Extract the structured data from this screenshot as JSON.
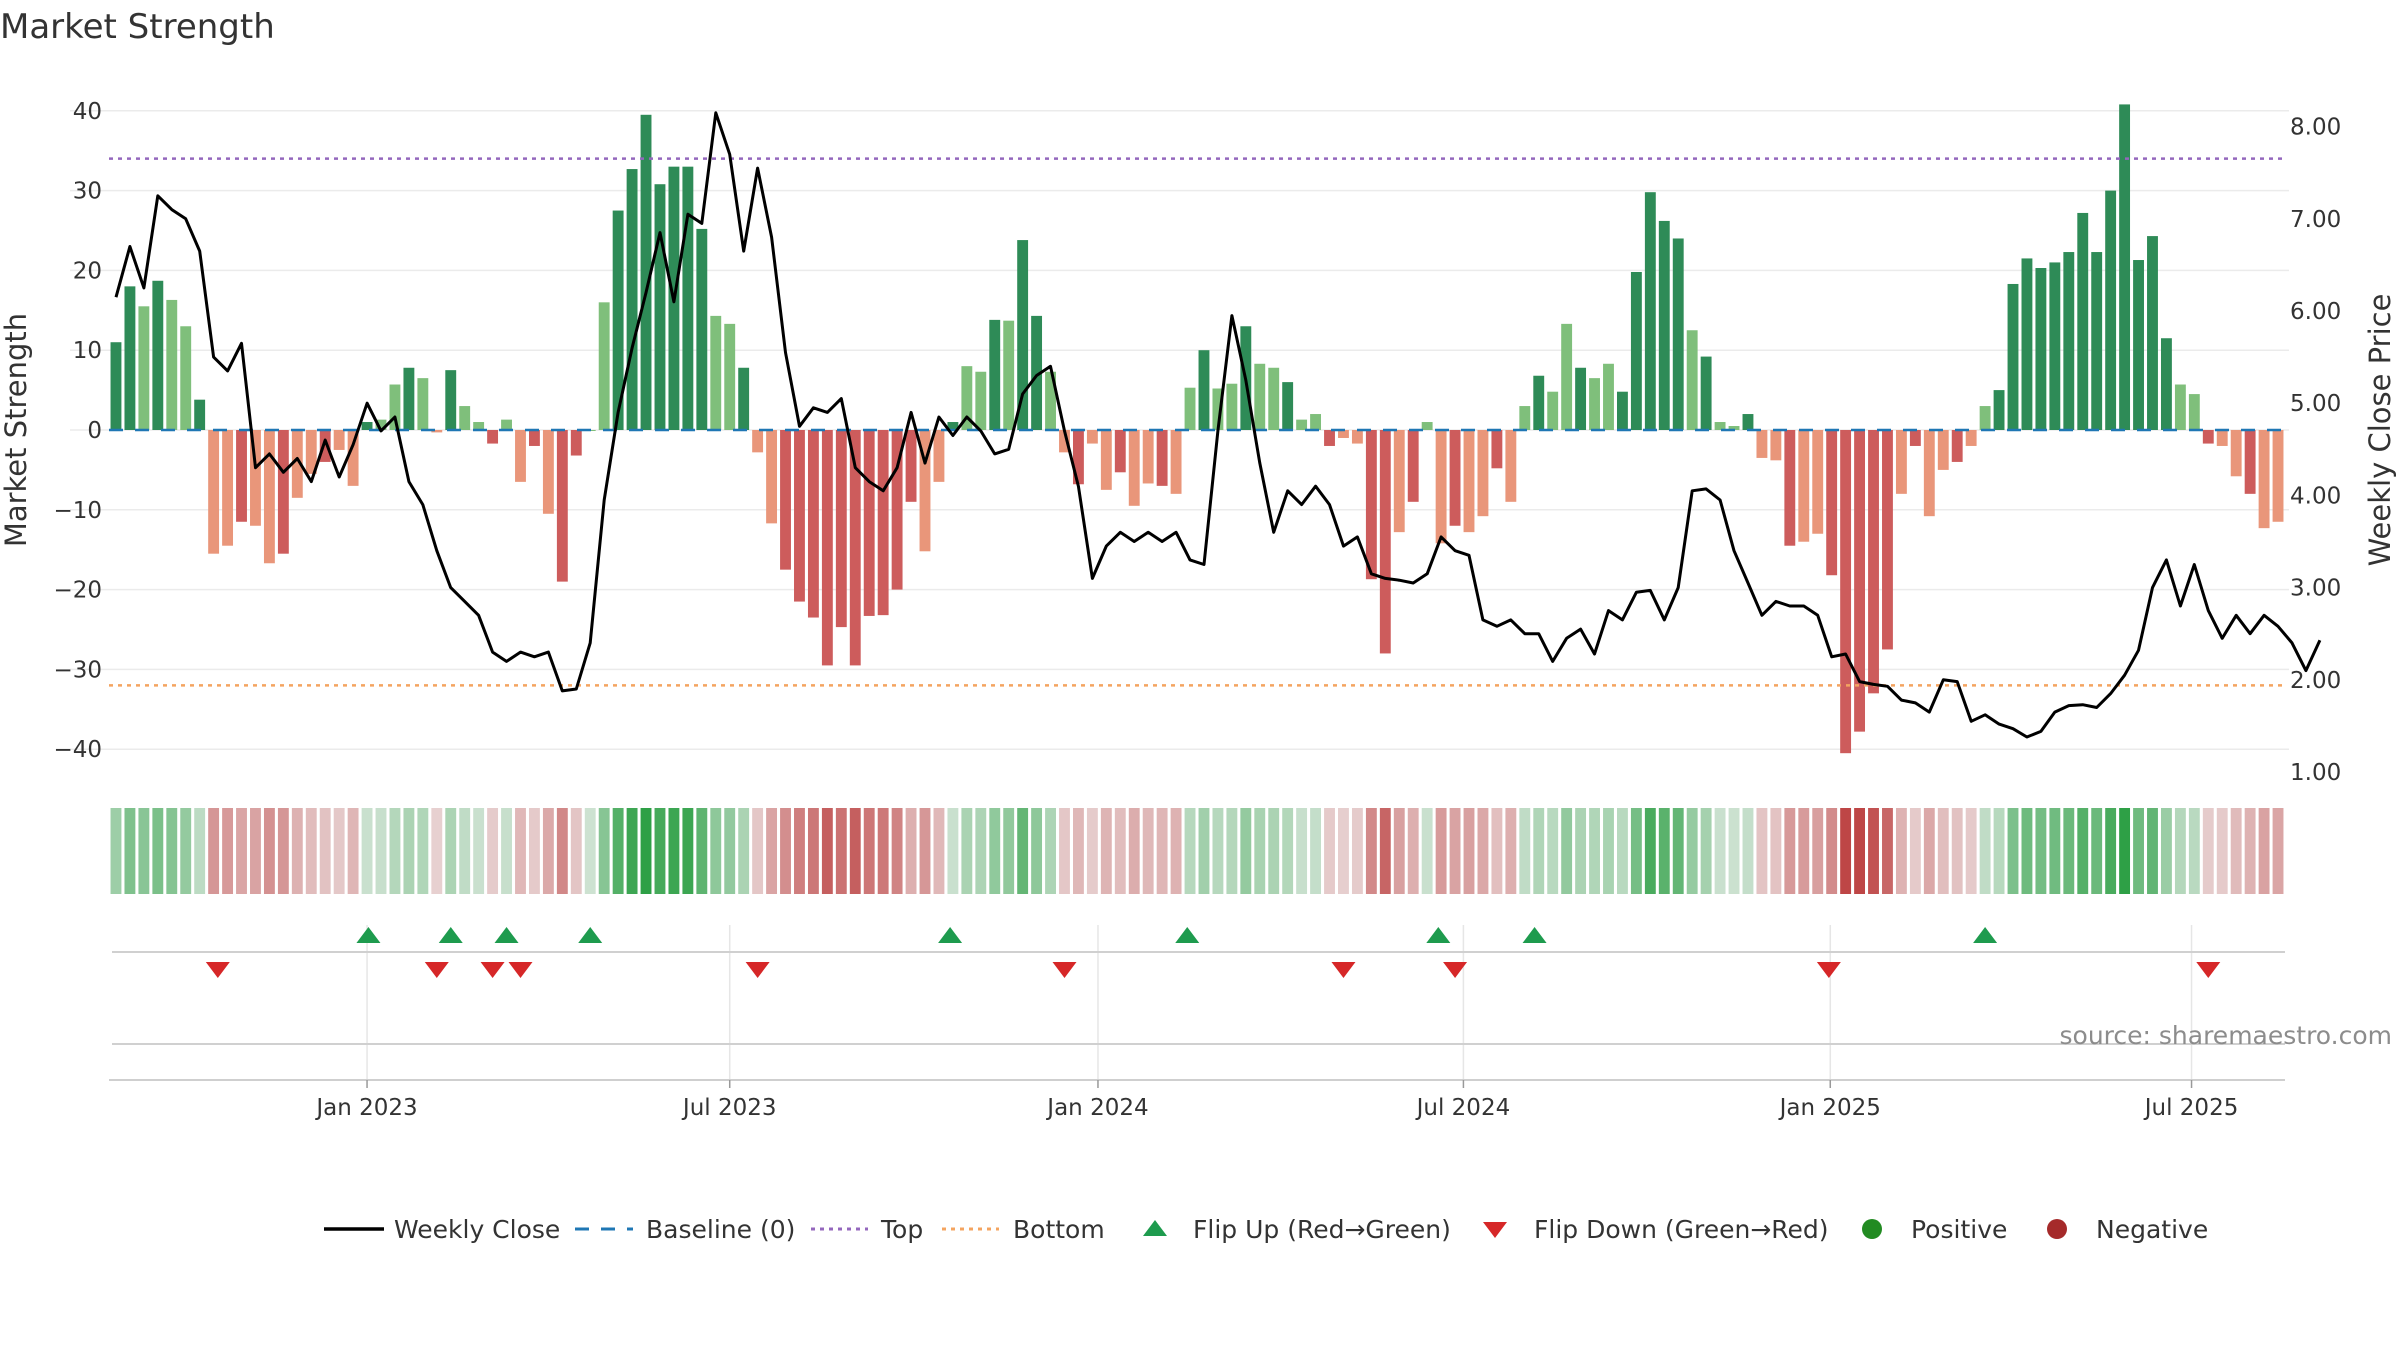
{
  "chart_data": {
    "type": "bar",
    "title": "Market Strength",
    "ylabel": "Market Strength",
    "y2label": "Weekly Close Price",
    "ylim": [
      -44,
      44
    ],
    "y2lim": [
      0.75,
      8.4
    ],
    "yticks": [
      40,
      30,
      20,
      10,
      0,
      -10,
      -20,
      -30,
      -40
    ],
    "y2ticks": [
      "8.00",
      "7.00",
      "6.00",
      "5.00",
      "4.00",
      "3.00",
      "2.00",
      "1.00"
    ],
    "xticks": [
      {
        "label": "Jan 2023",
        "week": 18
      },
      {
        "label": "Jul 2023",
        "week": 44
      },
      {
        "label": "Jan 2024",
        "week": 70.4
      },
      {
        "label": "Jul 2024",
        "week": 96.6
      },
      {
        "label": "Jan 2025",
        "week": 122.9
      },
      {
        "label": "Jul 2025",
        "week": 148.8
      }
    ],
    "top_level": 34,
    "bottom_level": -32,
    "strength": [
      11,
      18,
      15.5,
      18.7,
      16.3,
      13,
      3.8,
      -15.5,
      -14.5,
      -11.5,
      -12,
      -16.7,
      -15.5,
      -8.5,
      -5.5,
      -4,
      -2.5,
      -7,
      1,
      1.3,
      5.7,
      7.8,
      6.5,
      -0.3,
      7.5,
      3,
      1,
      -1.7,
      1.3,
      -6.5,
      -2,
      -10.5,
      -19,
      -3.2,
      0,
      16,
      27.5,
      32.7,
      39.5,
      30.8,
      33,
      33,
      25.2,
      14.3,
      13.3,
      7.8,
      -2.8,
      -11.7,
      -17.5,
      -21.5,
      -23.5,
      -29.5,
      -24.7,
      -29.5,
      -23.3,
      -23.2,
      -20,
      -9,
      -15.2,
      -6.5,
      1,
      8,
      7.3,
      13.8,
      13.7,
      23.8,
      14.3,
      7.3,
      -2.8,
      -6.8,
      -1.7,
      -7.5,
      -5.3,
      -9.5,
      -6.7,
      -7,
      -8,
      5.3,
      10,
      5.2,
      5.8,
      13,
      8.3,
      7.8,
      6,
      1.3,
      2,
      -2,
      -1,
      -1.7,
      -18.7,
      -28,
      -12.8,
      -9,
      1,
      -14.2,
      -12,
      -12.8,
      -10.8,
      -4.8,
      -9,
      3,
      6.8,
      4.8,
      13.3,
      7.8,
      6.5,
      8.3,
      4.8,
      19.8,
      29.8,
      26.2,
      24,
      12.5,
      9.2,
      1,
      0.5,
      2,
      -3.5,
      -3.8,
      -14.5,
      -14,
      -13,
      -18.2,
      -40.5,
      -37.8,
      -33,
      -27.5,
      -8,
      -2,
      -10.8,
      -5,
      -4,
      -2,
      3,
      5,
      18.3,
      21.5,
      20.3,
      21,
      22.3,
      27.2,
      22.3,
      30,
      40.8,
      21.3,
      24.3,
      11.5,
      5.7,
      4.5,
      -1.7,
      -2,
      -5.8,
      -8,
      -12.3,
      -11.5
    ],
    "weekly_close": [
      6.15,
      6.7,
      6.25,
      7.25,
      7.1,
      7,
      6.65,
      5.5,
      5.35,
      5.65,
      4.3,
      4.45,
      4.25,
      4.4,
      4.15,
      4.6,
      4.2,
      4.55,
      5,
      4.7,
      4.85,
      4.15,
      3.9,
      3.4,
      3,
      2.85,
      2.7,
      2.3,
      2.2,
      2.3,
      2.25,
      2.3,
      1.88,
      1.9,
      2.4,
      3.95,
      4.9,
      5.6,
      6.2,
      6.85,
      6.1,
      7.05,
      6.95,
      8.15,
      7.7,
      6.65,
      7.55,
      6.8,
      5.55,
      4.75,
      4.95,
      4.9,
      5.05,
      4.3,
      4.15,
      4.05,
      4.3,
      4.9,
      4.35,
      4.85,
      4.65,
      4.85,
      4.7,
      4.45,
      4.5,
      5.1,
      5.3,
      5.4,
      4.7,
      4.1,
      3.1,
      3.45,
      3.6,
      3.5,
      3.6,
      3.5,
      3.6,
      3.3,
      3.25,
      4.7,
      5.95,
      5.25,
      4.35,
      3.6,
      4.05,
      3.9,
      4.1,
      3.9,
      3.45,
      3.55,
      3.15,
      3.1,
      3.08,
      3.05,
      3.15,
      3.55,
      3.4,
      3.35,
      2.65,
      2.58,
      2.65,
      2.5,
      2.5,
      2.2,
      2.45,
      2.55,
      2.28,
      2.75,
      2.65,
      2.95,
      2.97,
      2.65,
      3,
      4.05,
      4.07,
      3.95,
      3.4,
      3.05,
      2.7,
      2.85,
      2.8,
      2.8,
      2.7,
      2.25,
      2.28,
      1.98,
      1.95,
      1.93,
      1.78,
      1.75,
      1.65,
      2,
      1.98,
      1.55,
      1.62,
      1.52,
      1.47,
      1.38,
      1.44,
      1.65,
      1.72,
      1.73,
      1.7,
      1.85,
      2.05,
      2.32,
      3,
      3.3,
      2.8,
      3.25,
      2.75,
      2.45,
      2.7,
      2.5,
      2.7,
      2.58,
      2.4,
      2.1,
      2.43
    ],
    "flip_up_weeks": [
      18.1,
      24,
      28,
      34
    ],
    "flip_down_weeks": [
      7.3,
      23,
      27,
      29,
      46,
      68,
      88,
      96,
      122.8,
      150
    ],
    "flip_up_weeks_2": [
      59.8,
      76.8,
      94.8,
      101.7,
      134
    ],
    "legend": [
      "Weekly Close",
      "Baseline (0)",
      "Top",
      "Bottom",
      "Flip Up (Red→Green)",
      "Flip Down (Green→Red)",
      "Positive",
      "Negative"
    ],
    "colors": {
      "pos_strong": "#2e8b57",
      "pos_weak": "#7fbf7b",
      "neg_strong": "#cd5c5c",
      "neg_weak": "#e9967a",
      "close": "#000000",
      "baseline": "#1f77b4",
      "top": "#9467bd",
      "bottom": "#f4a460",
      "flip_up": "#1e9b4e",
      "flip_down": "#d62728",
      "positive": "#228b22",
      "negative": "#a52a2a"
    }
  },
  "source_text": "source: sharemaestro.com"
}
